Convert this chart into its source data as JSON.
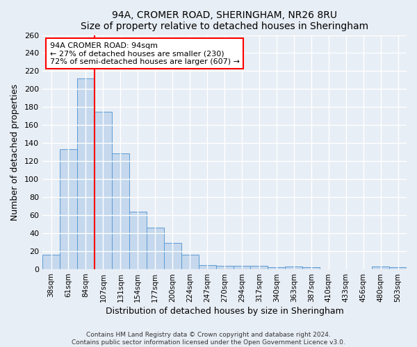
{
  "title": "94A, CROMER ROAD, SHERINGHAM, NR26 8RU",
  "subtitle": "Size of property relative to detached houses in Sheringham",
  "xlabel": "Distribution of detached houses by size in Sheringham",
  "ylabel": "Number of detached properties",
  "bar_labels": [
    "38sqm",
    "61sqm",
    "84sqm",
    "107sqm",
    "131sqm",
    "154sqm",
    "177sqm",
    "200sqm",
    "224sqm",
    "247sqm",
    "270sqm",
    "294sqm",
    "317sqm",
    "340sqm",
    "363sqm",
    "387sqm",
    "410sqm",
    "433sqm",
    "456sqm",
    "480sqm",
    "503sqm"
  ],
  "bar_values": [
    16,
    133,
    212,
    175,
    129,
    64,
    46,
    29,
    16,
    5,
    4,
    4,
    4,
    2,
    3,
    2,
    0,
    0,
    0,
    3,
    2
  ],
  "bar_color": "#c5d8ed",
  "bar_edge_color": "#5b9bd5",
  "ylim": [
    0,
    260
  ],
  "yticks": [
    0,
    20,
    40,
    60,
    80,
    100,
    120,
    140,
    160,
    180,
    200,
    220,
    240,
    260
  ],
  "red_line_x": 2.5,
  "annotation_title": "94A CROMER ROAD: 94sqm",
  "annotation_line1": "← 27% of detached houses are smaller (230)",
  "annotation_line2": "72% of semi-detached houses are larger (607) →",
  "footer1": "Contains HM Land Registry data © Crown copyright and database right 2024.",
  "footer2": "Contains public sector information licensed under the Open Government Licence v3.0.",
  "background_color": "#e8eef5",
  "grid_color": "#ffffff",
  "title_fontsize": 10,
  "subtitle_fontsize": 9
}
